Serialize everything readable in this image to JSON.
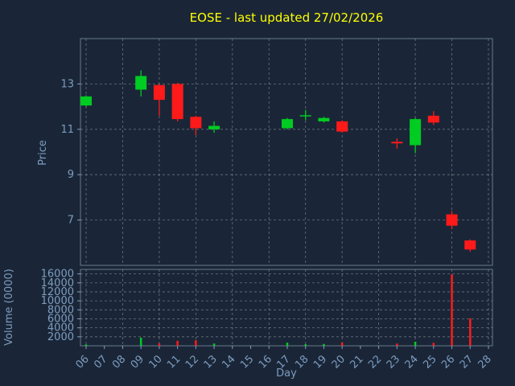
{
  "colors": {
    "background": "#1a2637",
    "title": "#ffff00",
    "axis_text": "#7d9cc0",
    "grid": "rgba(255,255,255,0.35)",
    "panel_border": "rgba(170,190,210,0.55)",
    "up": "#00cc22",
    "down": "#ff1a1a"
  },
  "chart_data": {
    "type": "candlestick",
    "title": "EOSE - last updated 27/02/2026",
    "xlabel": "Day",
    "ylabel_price": "Price",
    "ylabel_volume": "Volume (0000)",
    "x_ticks": [
      "06",
      "07",
      "08",
      "09",
      "10",
      "11",
      "12",
      "13",
      "14",
      "15",
      "16",
      "17",
      "18",
      "19",
      "20",
      "21",
      "22",
      "23",
      "24",
      "25",
      "26",
      "27",
      "28"
    ],
    "price_ticks": [
      7,
      9,
      11,
      13
    ],
    "price_ylim": [
      5,
      15
    ],
    "volume_ticks": [
      2000,
      4000,
      6000,
      8000,
      10000,
      12000,
      14000,
      16000
    ],
    "volume_ylim": [
      0,
      17000
    ],
    "grid": "dashed; vertical line every 2nd day; horizontal at each tick",
    "legend": "none",
    "candles": [
      {
        "day": "06",
        "open": 12.05,
        "high": 12.5,
        "low": 12.0,
        "close": 12.45,
        "volume": 300
      },
      {
        "day": "09",
        "open": 12.75,
        "high": 13.6,
        "low": 12.45,
        "close": 13.35,
        "volume": 1800
      },
      {
        "day": "10",
        "open": 12.95,
        "high": 13.0,
        "low": 11.6,
        "close": 12.3,
        "volume": 550
      },
      {
        "day": "11",
        "open": 13.0,
        "high": 13.05,
        "low": 11.35,
        "close": 11.45,
        "volume": 1100
      },
      {
        "day": "12",
        "open": 11.55,
        "high": 11.6,
        "low": 10.75,
        "close": 11.05,
        "volume": 1250
      },
      {
        "day": "13",
        "open": 11.0,
        "high": 11.35,
        "low": 10.85,
        "close": 11.15,
        "volume": 500
      },
      {
        "day": "17",
        "open": 11.05,
        "high": 11.5,
        "low": 11.0,
        "close": 11.45,
        "volume": 700
      },
      {
        "day": "18",
        "open": 11.6,
        "high": 11.85,
        "low": 11.4,
        "close": 11.62,
        "volume": 350
      },
      {
        "day": "19",
        "open": 11.35,
        "high": 11.55,
        "low": 11.3,
        "close": 11.5,
        "volume": 400
      },
      {
        "day": "20",
        "open": 11.35,
        "high": 11.4,
        "low": 10.85,
        "close": 10.9,
        "volume": 700
      },
      {
        "day": "23",
        "open": 10.45,
        "high": 10.6,
        "low": 10.15,
        "close": 10.38,
        "volume": 500
      },
      {
        "day": "24",
        "open": 10.3,
        "high": 11.5,
        "low": 9.95,
        "close": 11.45,
        "volume": 900
      },
      {
        "day": "25",
        "open": 11.6,
        "high": 11.8,
        "low": 11.2,
        "close": 11.3,
        "volume": 650
      },
      {
        "day": "26",
        "open": 7.25,
        "high": 7.4,
        "low": 6.6,
        "close": 6.75,
        "volume": 15900
      },
      {
        "day": "27",
        "open": 6.1,
        "high": 6.15,
        "low": 5.6,
        "close": 5.7,
        "volume": 6100
      }
    ]
  }
}
